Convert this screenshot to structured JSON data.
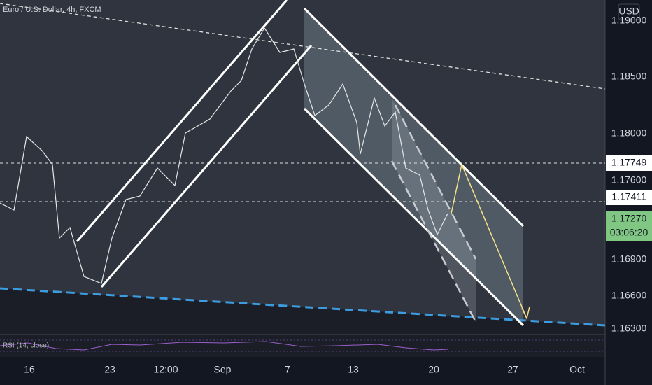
{
  "header": {
    "title": "Euro / U.S. Dollar, 4h, FXCM",
    "currency": "USD"
  },
  "price_axis": {
    "labels": [
      "1.19000",
      "1.18500",
      "1.18000",
      "1.17600",
      "1.16900",
      "1.16600",
      "1.16300"
    ],
    "marked": [
      "1.17749",
      "1.17411"
    ],
    "last_price": "1.17270",
    "countdown": "03:06:20"
  },
  "time_axis": {
    "labels": [
      "16",
      "23",
      "12:00",
      "Sep",
      "7",
      "13",
      "20",
      "27",
      "Oct"
    ]
  },
  "indicator": {
    "label": "RSI (14, close)"
  }
}
